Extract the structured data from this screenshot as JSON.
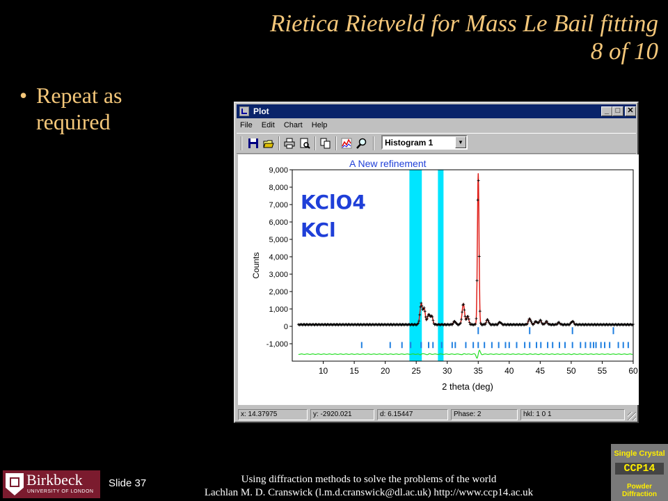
{
  "slide": {
    "title_line1": "Rietica Rietveld for Mass Le Bail fitting",
    "title_line2": "8 of 10",
    "bullet": "Repeat as required",
    "slide_number": "Slide 37",
    "footer_line1": "Using diffraction methods to solve the problems of the world",
    "footer_line2": "Lachlan M. D. Cranswick (l.m.d.cranswick@dl.ac.uk) http://www.ccp14.ac.uk"
  },
  "logos": {
    "birkbeck_name": "Birkbeck",
    "birkbeck_sub": "UNIVERSITY OF LONDON",
    "ccp14_line1": "Single Crystal",
    "ccp14_line2": "CCP14",
    "ccp14_line3": "Powder Diffraction"
  },
  "window": {
    "title": "Plot",
    "menu": [
      "File",
      "Edit",
      "Chart",
      "Help"
    ],
    "toolbar_icons": [
      "save-icon",
      "open-icon",
      "print-icon",
      "print-preview-icon",
      "copy-icon",
      "chart-icon",
      "zoom-icon"
    ],
    "histogram_select": "Histogram 1",
    "status": {
      "x": "x: 14.37975",
      "y": "y: -2920.021",
      "d": "d: 6.15447",
      "phase": "Phase: 2",
      "hkl": "hkl: 1 0 1"
    }
  },
  "chart_data": {
    "type": "line",
    "title": "A New refinement",
    "xlabel": "2 theta (deg)",
    "ylabel": "Counts",
    "xlim": [
      5,
      60
    ],
    "ylim": [
      -2000,
      9000
    ],
    "x_ticks": [
      10,
      15,
      20,
      25,
      30,
      35,
      40,
      45,
      50,
      55,
      60
    ],
    "y_ticks": [
      -1000,
      0,
      1000,
      2000,
      3000,
      4000,
      5000,
      6000,
      7000,
      8000,
      9000
    ],
    "y_tick_labels": [
      "-1,000",
      "0",
      "1,000",
      "2,000",
      "3,000",
      "4,000",
      "5,000",
      "6,000",
      "7,000",
      "8,000",
      "9,000"
    ],
    "annotations": [
      "KClO4",
      "KCl"
    ],
    "excluded_regions": [
      [
        23.9,
        25.9
      ],
      [
        28.5,
        29.4
      ]
    ],
    "observed_peaks": [
      {
        "x": 25.8,
        "y": 1300
      },
      {
        "x": 27.0,
        "y": 700
      },
      {
        "x": 32.6,
        "y": 1300
      },
      {
        "x": 35.0,
        "y": 8800
      },
      {
        "x": 43.3,
        "y": 450
      },
      {
        "x": 45.0,
        "y": 350
      },
      {
        "x": 50.2,
        "y": 300
      }
    ],
    "baseline": 100,
    "reflection_markers_row1": [
      16.2,
      20.8,
      22.7,
      24.1,
      25.8,
      27.0,
      27.7,
      29.1,
      30.8,
      31.3,
      33.0,
      34.2,
      35.0,
      36.0,
      37.2,
      38.3,
      39.4,
      40.0,
      41.2,
      42.5,
      43.3,
      44.4,
      45.1,
      46.2,
      47.0,
      48.1,
      49.0,
      50.2,
      51.5,
      52.3,
      53.1,
      53.6,
      54.0,
      54.8,
      55.4,
      56.2,
      57.6,
      58.4,
      59.2
    ],
    "reflection_markers_row2": [
      35.0,
      43.3,
      50.2,
      56.8
    ],
    "colors": {
      "observed": "#000000",
      "calculated": "#e0201a",
      "difference": "#22dd22",
      "markers": "#1f7fe0",
      "excluded": "#00e5ff",
      "title": "#1f3fd8",
      "annotation": "#1f3fd8"
    }
  }
}
